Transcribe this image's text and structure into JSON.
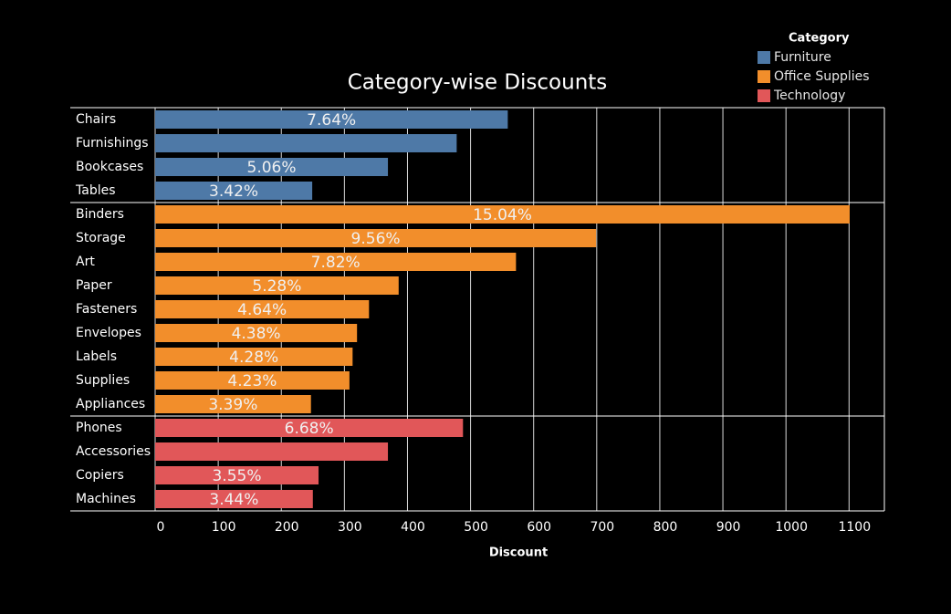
{
  "chart_data": {
    "type": "grouped-hbar",
    "title": "Category-wise Discounts",
    "x_label": "Discount",
    "legend_title": "Category",
    "xlim": [
      0,
      1156
    ],
    "xticks": [
      0,
      100,
      200,
      300,
      400,
      500,
      600,
      700,
      800,
      900,
      1000,
      1100
    ],
    "grid": true,
    "groups": [
      {
        "name": "Furniture",
        "color": "#4e79a7",
        "categories": [
          "Chairs",
          "Furnishings",
          "Bookcases",
          "Tables"
        ],
        "values": [
          559,
          478,
          369,
          249
        ],
        "bar_labels": [
          "7.64%",
          null,
          "5.06%",
          "3.42%"
        ]
      },
      {
        "name": "Office Supplies",
        "color": "#f28e2b",
        "categories": [
          "Binders",
          "Storage",
          "Art",
          "Paper",
          "Fasteners",
          "Envelopes",
          "Labels",
          "Supplies",
          "Appliances"
        ],
        "values": [
          1101,
          699,
          572,
          386,
          339,
          320,
          313,
          308,
          247
        ],
        "bar_labels": [
          "15.04%",
          "9.56%",
          "7.82%",
          "5.28%",
          "4.64%",
          "4.38%",
          "4.28%",
          "4.23%",
          "3.39%"
        ]
      },
      {
        "name": "Technology",
        "color": "#e15759",
        "categories": [
          "Phones",
          "Accessories",
          "Copiers",
          "Machines"
        ],
        "values": [
          488,
          369,
          259,
          250
        ],
        "bar_labels": [
          "6.68%",
          null,
          "3.55%",
          "3.44%"
        ]
      }
    ]
  }
}
